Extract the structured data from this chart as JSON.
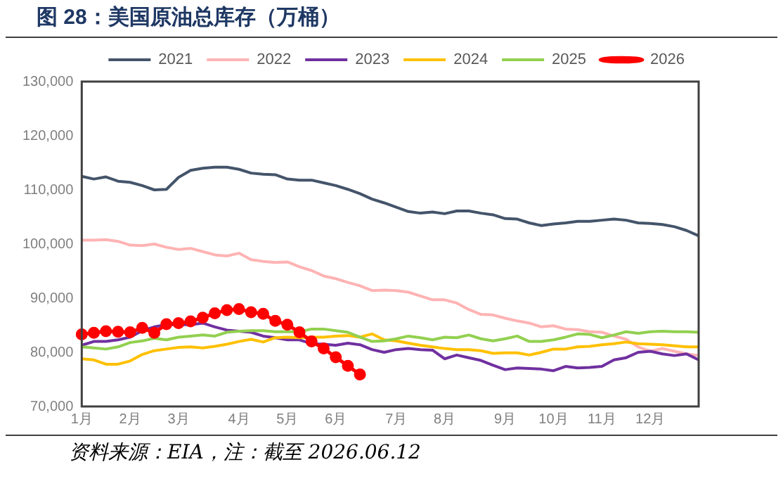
{
  "chart_data": {
    "type": "line",
    "title": "图 28：美国原油总库存（万桶）",
    "annotations": [
      "资料来源：EIA，注：截至 2026.06.12"
    ],
    "categories": [
      "1月",
      null,
      null,
      null,
      "2月",
      null,
      null,
      null,
      "3月",
      null,
      null,
      null,
      null,
      "4月",
      null,
      null,
      null,
      "5月",
      null,
      null,
      null,
      "6月",
      null,
      null,
      null,
      null,
      "7月",
      null,
      null,
      null,
      "8月",
      null,
      null,
      null,
      null,
      "9月",
      null,
      null,
      null,
      "10月",
      null,
      null,
      null,
      "11月",
      null,
      null,
      null,
      "12月",
      null,
      null,
      null,
      null
    ],
    "ylim": [
      70000,
      130000
    ],
    "yticks": [
      {
        "value": 70000,
        "label": "70,000"
      },
      {
        "value": 80000,
        "label": "80,000"
      },
      {
        "value": 90000,
        "label": "90,000"
      },
      {
        "value": 100000,
        "label": "100,000"
      },
      {
        "value": 110000,
        "label": "110,000"
      },
      {
        "value": 120000,
        "label": "120,000"
      },
      {
        "value": 130000,
        "label": "130,000"
      }
    ],
    "grid": false,
    "legend": "top",
    "marker": "none",
    "line_style": "solid",
    "series": [
      {
        "name": "2021",
        "color": "#44546a",
        "values": [
          112500,
          112000,
          112400,
          111600,
          111400,
          110800,
          110000,
          110100,
          112300,
          113600,
          114000,
          114200,
          114200,
          113800,
          113100,
          112900,
          112800,
          112000,
          111800,
          111800,
          111300,
          110800,
          110100,
          109300,
          108300,
          107600,
          106800,
          106000,
          105700,
          105900,
          105600,
          106100,
          106100,
          105700,
          105400,
          104700,
          104600,
          103900,
          103400,
          103700,
          103900,
          104200,
          104200,
          104400,
          104600,
          104400,
          103900,
          103800,
          103600,
          103200,
          102500,
          101500
        ]
      },
      {
        "name": "2022",
        "color": "#ffb3b3",
        "values": [
          100700,
          100700,
          100800,
          100500,
          99800,
          99700,
          100000,
          99400,
          99000,
          99200,
          98600,
          98000,
          97800,
          98300,
          97100,
          96800,
          96600,
          96700,
          95800,
          95100,
          94100,
          93600,
          92900,
          92300,
          91400,
          91500,
          91400,
          91100,
          90400,
          89700,
          89700,
          89100,
          87900,
          87000,
          86900,
          86300,
          85800,
          85400,
          84700,
          84900,
          84300,
          84200,
          83800,
          83700,
          83000,
          82400,
          81000,
          80200,
          80700,
          80200,
          79700,
          79400
        ]
      },
      {
        "name": "2023",
        "color": "#7030a0",
        "values": [
          81300,
          82000,
          82000,
          82300,
          82800,
          84000,
          84700,
          85100,
          85100,
          85100,
          85400,
          84700,
          84100,
          83900,
          83700,
          83000,
          82700,
          82300,
          82300,
          81600,
          81500,
          81300,
          81700,
          81400,
          80500,
          80000,
          80500,
          80700,
          80500,
          80400,
          78800,
          79500,
          79000,
          78500,
          77600,
          76800,
          77100,
          77000,
          76900,
          76600,
          77400,
          77100,
          77200,
          77400,
          78600,
          79000,
          80000,
          80200,
          79700,
          79400,
          79700,
          78600
        ]
      },
      {
        "name": "2024",
        "color": "#ffc000",
        "values": [
          78800,
          78600,
          77800,
          77800,
          78400,
          79600,
          80300,
          80600,
          80900,
          81000,
          80800,
          81100,
          81500,
          82000,
          82400,
          81900,
          82700,
          82800,
          82700,
          82800,
          82800,
          83000,
          83100,
          82800,
          83400,
          82300,
          82100,
          81700,
          81300,
          81000,
          80700,
          80500,
          80500,
          80300,
          79800,
          79900,
          79900,
          79500,
          80000,
          80600,
          80600,
          81000,
          81100,
          81400,
          81600,
          81900,
          81600,
          81500,
          81400,
          81200,
          81000,
          81000
        ]
      },
      {
        "name": "2025",
        "color": "#92d050",
        "values": [
          81000,
          80800,
          80600,
          81000,
          81800,
          82100,
          82600,
          82300,
          82800,
          83000,
          83200,
          83000,
          83700,
          83900,
          84000,
          84000,
          83800,
          83800,
          83800,
          84300,
          84300,
          84000,
          83700,
          82800,
          82000,
          82100,
          82500,
          83000,
          82700,
          82300,
          82800,
          82700,
          83200,
          82500,
          82100,
          82500,
          83000,
          82000,
          82000,
          82300,
          82800,
          83400,
          83300,
          82700,
          83200,
          83800,
          83500,
          83800,
          83900,
          83800,
          83800,
          83700
        ]
      },
      {
        "name": "2026",
        "color": "#ff0000",
        "marker": "circle",
        "values": [
          83300,
          83600,
          83900,
          83800,
          83700,
          84500,
          83600,
          85200,
          85400,
          85700,
          86400,
          87200,
          87800,
          88000,
          87400,
          87100,
          85800,
          85100,
          83700,
          82000,
          80700,
          79100,
          77500,
          75900,
          null,
          null,
          null,
          null,
          null,
          null,
          null,
          null,
          null,
          null,
          null,
          null,
          null,
          null,
          null,
          null,
          null,
          null,
          null,
          null,
          null,
          null,
          null,
          null,
          null,
          null,
          null,
          null
        ]
      }
    ]
  }
}
